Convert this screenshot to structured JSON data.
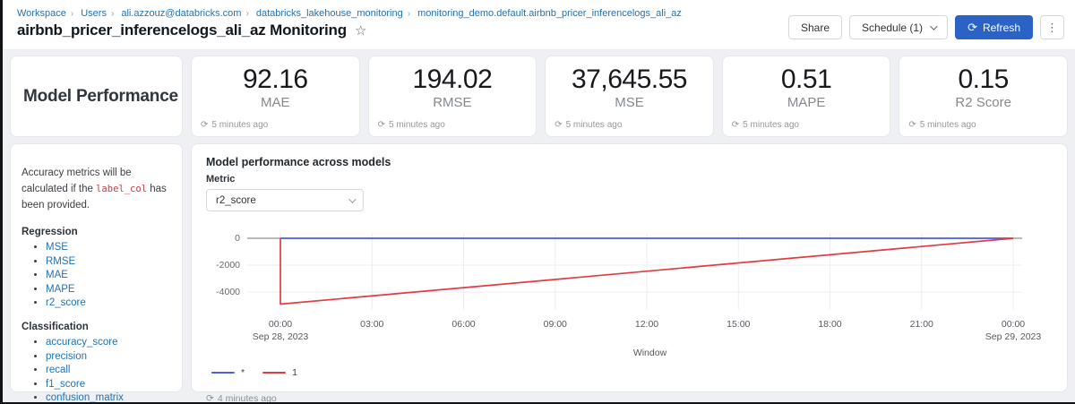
{
  "breadcrumb": {
    "items": [
      "Workspace",
      "Users",
      "ali.azzouz@databricks.com",
      "databricks_lakehouse_monitoring",
      "monitoring_demo.default.airbnb_pricer_inferencelogs_ali_az"
    ]
  },
  "header": {
    "title": "airbnb_pricer_inferencelogs_ali_az Monitoring",
    "star": "☆",
    "share_label": "Share",
    "schedule_label": "Schedule (1)",
    "refresh_label": "Refresh",
    "refresh_icon": "⟳",
    "kebab_icon": "⋮"
  },
  "section": {
    "title": "Model Performance"
  },
  "metric_cards": [
    {
      "value": "92.16",
      "label": "MAE",
      "updated": "5 minutes ago",
      "icon": "⟳"
    },
    {
      "value": "194.02",
      "label": "RMSE",
      "updated": "5 minutes ago",
      "icon": "⟳"
    },
    {
      "value": "37,645.55",
      "label": "MSE",
      "updated": "5 minutes ago",
      "icon": "⟳"
    },
    {
      "value": "0.51",
      "label": "MAPE",
      "updated": "5 minutes ago",
      "icon": "⟳"
    },
    {
      "value": "0.15",
      "label": "R2 Score",
      "updated": "5 minutes ago",
      "icon": "⟳"
    }
  ],
  "sidebar": {
    "note_before": "Accuracy metrics will be calculated if the ",
    "code": "label_col",
    "note_after": " has been provided.",
    "regression_title": "Regression",
    "regression_links": [
      "MSE",
      "RMSE",
      "MAE",
      "MAPE",
      "r2_score"
    ],
    "classification_title": "Classification",
    "classification_links": [
      "accuracy_score",
      "precision",
      "recall",
      "f1_score",
      "confusion_matrix"
    ]
  },
  "chart_card": {
    "title": "Model performance across models",
    "metric_label": "Metric",
    "metric_value": "r2_score",
    "updated": "4 minutes ago",
    "updated_icon": "⟳"
  },
  "chart_data": {
    "type": "line",
    "title": "Model performance across models",
    "xlabel": "Window",
    "ylabel": "",
    "x_ticks": [
      "00:00",
      "03:00",
      "06:00",
      "09:00",
      "12:00",
      "15:00",
      "18:00",
      "21:00",
      "00:00"
    ],
    "x_sub_first": "Sep 28, 2023",
    "x_sub_last": "Sep 29, 2023",
    "x_hours_range": [
      0,
      24
    ],
    "y_ticks": [
      0,
      -2000,
      -4000
    ],
    "ylim": [
      -5300,
      400
    ],
    "grid": true,
    "legend_position": "bottom-left",
    "axis_color": "#8f9094",
    "grid_color": "#ededf1",
    "series": [
      {
        "name": "*",
        "color": "#4C5FE0",
        "points": [
          [
            0,
            0
          ],
          [
            24,
            0
          ]
        ]
      },
      {
        "name": "1",
        "color": "#E23B41",
        "points": [
          [
            0,
            0
          ],
          [
            0,
            -4900
          ],
          [
            24,
            0
          ]
        ]
      }
    ]
  }
}
